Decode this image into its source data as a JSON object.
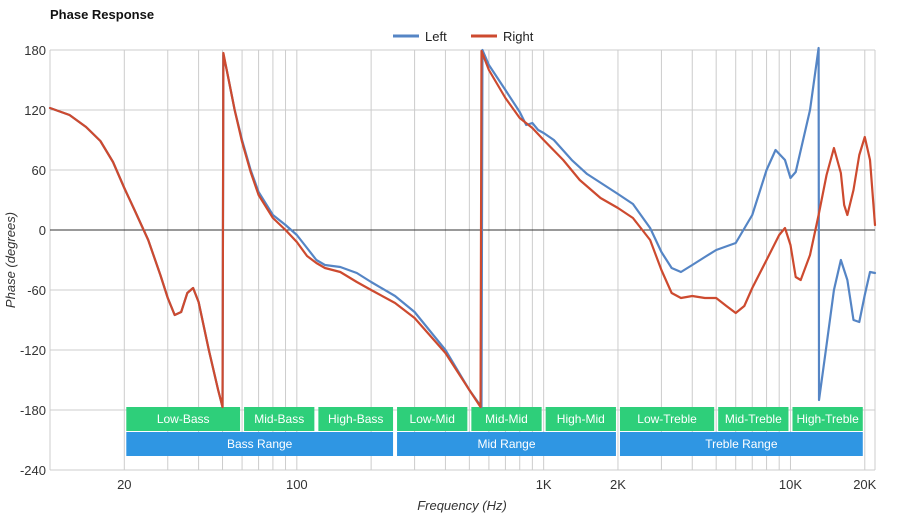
{
  "chart_data": {
    "type": "line",
    "title": "Phase Response",
    "xlabel": "Frequency (Hz)",
    "ylabel": "Phase (degrees)",
    "x_scale": "log",
    "xlim": [
      10,
      22000
    ],
    "ylim": [
      -240,
      180
    ],
    "x_ticks": [
      {
        "value": 20,
        "label": "20"
      },
      {
        "value": 100,
        "label": "100"
      },
      {
        "value": 1000,
        "label": "1K"
      },
      {
        "value": 2000,
        "label": "2K"
      },
      {
        "value": 10000,
        "label": "10K"
      },
      {
        "value": 20000,
        "label": "20K"
      }
    ],
    "y_ticks": [
      {
        "value": 180,
        "label": "180"
      },
      {
        "value": 120,
        "label": "120"
      },
      {
        "value": 60,
        "label": "60"
      },
      {
        "value": 0,
        "label": "0"
      },
      {
        "value": -60,
        "label": "-60"
      },
      {
        "value": -120,
        "label": "-120"
      },
      {
        "value": -180,
        "label": "-180"
      },
      {
        "value": -240,
        "label": "-240"
      }
    ],
    "grid": true,
    "legend": "top-center",
    "series": [
      {
        "name": "Left",
        "color": "#5585c5",
        "points": [
          [
            10,
            122
          ],
          [
            12,
            115
          ],
          [
            14,
            103
          ],
          [
            16,
            89
          ],
          [
            18,
            68
          ],
          [
            20,
            42
          ],
          [
            22,
            20
          ],
          [
            25,
            -10
          ],
          [
            28,
            -45
          ],
          [
            30,
            -68
          ],
          [
            32,
            -85
          ],
          [
            34,
            -82
          ],
          [
            36,
            -63
          ],
          [
            38,
            -58
          ],
          [
            40,
            -72
          ],
          [
            44,
            -120
          ],
          [
            48,
            -160
          ],
          [
            50,
            -177
          ],
          [
            50.4,
            175
          ],
          [
            52,
            160
          ],
          [
            56,
            120
          ],
          [
            60,
            90
          ],
          [
            65,
            60
          ],
          [
            70,
            38
          ],
          [
            80,
            15
          ],
          [
            90,
            5
          ],
          [
            100,
            -5
          ],
          [
            110,
            -18
          ],
          [
            120,
            -30
          ],
          [
            130,
            -35
          ],
          [
            150,
            -37
          ],
          [
            175,
            -43
          ],
          [
            200,
            -52
          ],
          [
            250,
            -66
          ],
          [
            300,
            -82
          ],
          [
            400,
            -120
          ],
          [
            500,
            -160
          ],
          [
            560,
            -177
          ],
          [
            565,
            180
          ],
          [
            600,
            165
          ],
          [
            700,
            140
          ],
          [
            800,
            118
          ],
          [
            850,
            105
          ],
          [
            900,
            107
          ],
          [
            950,
            100
          ],
          [
            1000,
            97
          ],
          [
            1100,
            90
          ],
          [
            1300,
            70
          ],
          [
            1500,
            56
          ],
          [
            2000,
            36
          ],
          [
            2300,
            26
          ],
          [
            2700,
            2
          ],
          [
            3000,
            -22
          ],
          [
            3300,
            -38
          ],
          [
            3600,
            -42
          ],
          [
            4000,
            -35
          ],
          [
            4500,
            -27
          ],
          [
            5000,
            -20
          ],
          [
            6000,
            -13
          ],
          [
            7000,
            15
          ],
          [
            8000,
            60
          ],
          [
            8700,
            80
          ],
          [
            9500,
            70
          ],
          [
            10000,
            52
          ],
          [
            10500,
            58
          ],
          [
            12000,
            120
          ],
          [
            13000,
            182
          ],
          [
            13050,
            -170
          ],
          [
            14000,
            -115
          ],
          [
            15000,
            -60
          ],
          [
            16000,
            -30
          ],
          [
            17000,
            -50
          ],
          [
            18000,
            -90
          ],
          [
            19000,
            -92
          ],
          [
            20000,
            -65
          ],
          [
            21000,
            -42
          ],
          [
            22000,
            -43
          ]
        ]
      },
      {
        "name": "Right",
        "color": "#cd4a2f",
        "points": [
          [
            10,
            122
          ],
          [
            12,
            115
          ],
          [
            14,
            103
          ],
          [
            16,
            89
          ],
          [
            18,
            68
          ],
          [
            20,
            42
          ],
          [
            22,
            20
          ],
          [
            25,
            -10
          ],
          [
            28,
            -45
          ],
          [
            30,
            -68
          ],
          [
            32,
            -85
          ],
          [
            34,
            -82
          ],
          [
            36,
            -63
          ],
          [
            38,
            -58
          ],
          [
            40,
            -72
          ],
          [
            44,
            -120
          ],
          [
            48,
            -160
          ],
          [
            50,
            -177
          ],
          [
            50.4,
            177
          ],
          [
            52,
            160
          ],
          [
            56,
            120
          ],
          [
            60,
            88
          ],
          [
            65,
            58
          ],
          [
            70,
            35
          ],
          [
            80,
            12
          ],
          [
            90,
            0
          ],
          [
            100,
            -12
          ],
          [
            110,
            -26
          ],
          [
            120,
            -33
          ],
          [
            130,
            -38
          ],
          [
            150,
            -42
          ],
          [
            175,
            -52
          ],
          [
            200,
            -60
          ],
          [
            250,
            -73
          ],
          [
            300,
            -88
          ],
          [
            400,
            -123
          ],
          [
            500,
            -160
          ],
          [
            555,
            -177
          ],
          [
            560,
            179
          ],
          [
            600,
            160
          ],
          [
            700,
            132
          ],
          [
            800,
            112
          ],
          [
            900,
            102
          ],
          [
            1000,
            90
          ],
          [
            1200,
            70
          ],
          [
            1400,
            50
          ],
          [
            1700,
            32
          ],
          [
            2000,
            22
          ],
          [
            2300,
            12
          ],
          [
            2700,
            -10
          ],
          [
            3000,
            -40
          ],
          [
            3300,
            -63
          ],
          [
            3600,
            -68
          ],
          [
            4000,
            -66
          ],
          [
            4500,
            -68
          ],
          [
            5000,
            -68
          ],
          [
            5500,
            -76
          ],
          [
            6000,
            -83
          ],
          [
            6500,
            -76
          ],
          [
            7000,
            -58
          ],
          [
            8000,
            -30
          ],
          [
            9000,
            -5
          ],
          [
            9500,
            2
          ],
          [
            10000,
            -15
          ],
          [
            10500,
            -47
          ],
          [
            11000,
            -50
          ],
          [
            12000,
            -25
          ],
          [
            13000,
            15
          ],
          [
            14000,
            55
          ],
          [
            15000,
            82
          ],
          [
            16000,
            57
          ],
          [
            16500,
            25
          ],
          [
            17000,
            15
          ],
          [
            18000,
            40
          ],
          [
            19000,
            75
          ],
          [
            20000,
            93
          ],
          [
            21000,
            70
          ],
          [
            22000,
            5
          ]
        ]
      }
    ],
    "bands": [
      {
        "row": 1,
        "label": "Low-Bass",
        "from": 20,
        "to": 60
      },
      {
        "row": 1,
        "label": "Mid-Bass",
        "from": 60,
        "to": 120
      },
      {
        "row": 1,
        "label": "High-Bass",
        "from": 120,
        "to": 250
      },
      {
        "row": 1,
        "label": "Low-Mid",
        "from": 250,
        "to": 500
      },
      {
        "row": 1,
        "label": "Mid-Mid",
        "from": 500,
        "to": 1000
      },
      {
        "row": 1,
        "label": "High-Mid",
        "from": 1000,
        "to": 2000
      },
      {
        "row": 1,
        "label": "Low-Treble",
        "from": 2000,
        "to": 5000
      },
      {
        "row": 1,
        "label": "Mid-Treble",
        "from": 5000,
        "to": 10000
      },
      {
        "row": 1,
        "label": "High-Treble",
        "from": 10000,
        "to": 20000
      },
      {
        "row": 2,
        "label": "Bass Range",
        "from": 20,
        "to": 250
      },
      {
        "row": 2,
        "label": "Mid Range",
        "from": 250,
        "to": 2000
      },
      {
        "row": 2,
        "label": "Treble Range",
        "from": 2000,
        "to": 20000
      }
    ],
    "colors": {
      "band_row1": "#2ecf7a",
      "band_row2": "#2f96e3",
      "grid": "#cccccc",
      "zero_line": "#333333"
    }
  }
}
